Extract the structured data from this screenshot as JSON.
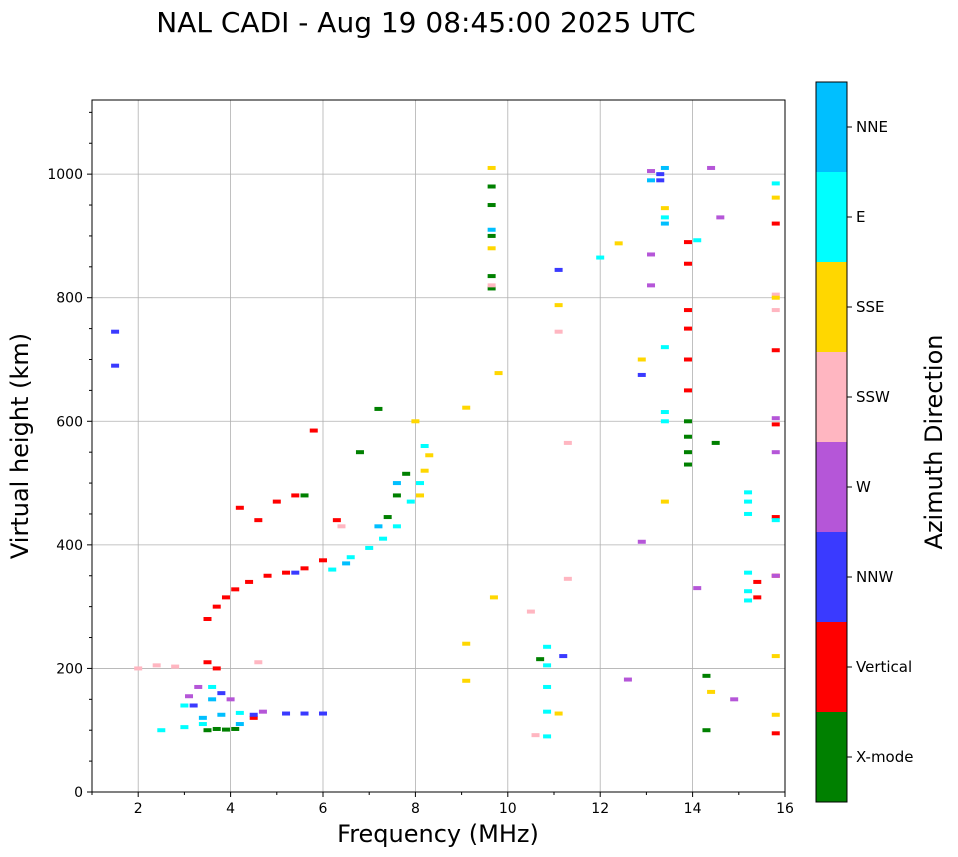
{
  "chart_data": {
    "type": "scatter",
    "title": "NAL CADI - Aug 19 08:45:00 2025 UTC",
    "xlabel": "Frequency (MHz)",
    "ylabel": "Virtual height (km)",
    "xlim": [
      1,
      16
    ],
    "ylim": [
      0,
      1120
    ],
    "xticks": [
      2,
      4,
      6,
      8,
      10,
      12,
      14,
      16
    ],
    "yticks": [
      0,
      200,
      400,
      600,
      800,
      1000
    ],
    "grid": true,
    "colorbar": {
      "label": "Azimuth Direction",
      "categories": [
        {
          "name": "X-mode",
          "color": "#008000"
        },
        {
          "name": "Vertical",
          "color": "#ff0000"
        },
        {
          "name": "NNW",
          "color": "#3a3aff"
        },
        {
          "name": "W",
          "color": "#b556d8"
        },
        {
          "name": "SSW",
          "color": "#ffb6c1"
        },
        {
          "name": "SSE",
          "color": "#ffd700"
        },
        {
          "name": "E",
          "color": "#00ffff"
        },
        {
          "name": "NNE",
          "color": "#00bfff"
        }
      ]
    },
    "series": [
      {
        "name": "X-mode",
        "points": [
          [
            3.5,
            100
          ],
          [
            3.7,
            102
          ],
          [
            3.9,
            101
          ],
          [
            4.1,
            102
          ],
          [
            7.4,
            445
          ],
          [
            7.6,
            480
          ],
          [
            7.8,
            515
          ],
          [
            7.2,
            620
          ],
          [
            9.65,
            815
          ],
          [
            9.65,
            835
          ],
          [
            9.65,
            900
          ],
          [
            9.65,
            950
          ],
          [
            9.65,
            980
          ],
          [
            10.7,
            215
          ],
          [
            13.9,
            530
          ],
          [
            13.9,
            550
          ],
          [
            13.9,
            575
          ],
          [
            13.9,
            600
          ],
          [
            14.5,
            565
          ],
          [
            14.3,
            100
          ],
          [
            14.3,
            188
          ],
          [
            6.8,
            550
          ],
          [
            5.6,
            480
          ]
        ]
      },
      {
        "name": "Vertical",
        "points": [
          [
            3.5,
            280
          ],
          [
            3.7,
            300
          ],
          [
            3.9,
            315
          ],
          [
            4.1,
            328
          ],
          [
            4.4,
            340
          ],
          [
            4.8,
            350
          ],
          [
            5.2,
            355
          ],
          [
            5.6,
            362
          ],
          [
            6.0,
            375
          ],
          [
            3.7,
            200
          ],
          [
            3.5,
            210
          ],
          [
            4.2,
            460
          ],
          [
            4.6,
            440
          ],
          [
            5.0,
            470
          ],
          [
            5.4,
            480
          ],
          [
            6.3,
            440
          ],
          [
            5.8,
            585
          ],
          [
            4.5,
            120
          ],
          [
            13.9,
            650
          ],
          [
            13.9,
            700
          ],
          [
            13.9,
            750
          ],
          [
            13.9,
            780
          ],
          [
            13.9,
            890
          ],
          [
            13.9,
            855
          ],
          [
            15.8,
            95
          ],
          [
            15.8,
            350
          ],
          [
            15.8,
            445
          ],
          [
            15.8,
            595
          ],
          [
            15.8,
            715
          ],
          [
            15.8,
            920
          ],
          [
            15.4,
            340
          ],
          [
            15.4,
            315
          ]
        ]
      },
      {
        "name": "NNW",
        "points": [
          [
            5.2,
            127
          ],
          [
            5.6,
            127
          ],
          [
            6.0,
            127
          ],
          [
            4.5,
            125
          ],
          [
            3.2,
            140
          ],
          [
            3.8,
            160
          ],
          [
            1.5,
            745
          ],
          [
            1.5,
            690
          ],
          [
            13.3,
            1000
          ],
          [
            13.3,
            990
          ],
          [
            12.9,
            675
          ],
          [
            11.2,
            220
          ],
          [
            11.1,
            845
          ],
          [
            5.4,
            355
          ]
        ]
      },
      {
        "name": "W",
        "points": [
          [
            4.7,
            130
          ],
          [
            3.3,
            170
          ],
          [
            3.1,
            155
          ],
          [
            4.0,
            150
          ],
          [
            13.1,
            820
          ],
          [
            13.1,
            870
          ],
          [
            13.1,
            1005
          ],
          [
            12.9,
            405
          ],
          [
            12.6,
            182
          ],
          [
            14.1,
            330
          ],
          [
            14.6,
            930
          ],
          [
            14.4,
            1010
          ],
          [
            14.9,
            150
          ],
          [
            15.8,
            550
          ],
          [
            15.8,
            605
          ],
          [
            15.8,
            350
          ]
        ]
      },
      {
        "name": "SSW",
        "points": [
          [
            2.0,
            200
          ],
          [
            2.4,
            205
          ],
          [
            2.8,
            203
          ],
          [
            4.6,
            210
          ],
          [
            6.4,
            430
          ],
          [
            9.65,
            820
          ],
          [
            10.6,
            92
          ],
          [
            10.5,
            292
          ],
          [
            11.1,
            745
          ],
          [
            11.3,
            345
          ],
          [
            11.3,
            565
          ],
          [
            15.8,
            780
          ],
          [
            15.8,
            805
          ]
        ]
      },
      {
        "name": "SSE",
        "points": [
          [
            8.2,
            520
          ],
          [
            8.3,
            545
          ],
          [
            8.1,
            480
          ],
          [
            8.0,
            600
          ],
          [
            9.1,
            180
          ],
          [
            9.1,
            240
          ],
          [
            9.1,
            622
          ],
          [
            9.65,
            880
          ],
          [
            9.65,
            1010
          ],
          [
            9.7,
            315
          ],
          [
            9.8,
            678
          ],
          [
            11.1,
            127
          ],
          [
            11.1,
            788
          ],
          [
            12.4,
            888
          ],
          [
            12.9,
            700
          ],
          [
            13.4,
            470
          ],
          [
            13.4,
            945
          ],
          [
            14.4,
            162
          ],
          [
            15.8,
            125
          ],
          [
            15.8,
            220
          ],
          [
            15.8,
            800
          ],
          [
            15.8,
            962
          ]
        ]
      },
      {
        "name": "E",
        "points": [
          [
            2.5,
            100
          ],
          [
            3.0,
            105
          ],
          [
            3.4,
            110
          ],
          [
            3.0,
            140
          ],
          [
            3.6,
            170
          ],
          [
            4.2,
            128
          ],
          [
            6.2,
            360
          ],
          [
            6.6,
            380
          ],
          [
            7.0,
            395
          ],
          [
            7.3,
            410
          ],
          [
            7.6,
            430
          ],
          [
            7.9,
            470
          ],
          [
            8.1,
            500
          ],
          [
            8.2,
            560
          ],
          [
            10.85,
            90
          ],
          [
            10.85,
            130
          ],
          [
            10.85,
            170
          ],
          [
            10.85,
            205
          ],
          [
            10.85,
            235
          ],
          [
            12.0,
            865
          ],
          [
            13.4,
            600
          ],
          [
            13.4,
            615
          ],
          [
            13.4,
            720
          ],
          [
            13.4,
            930
          ],
          [
            14.1,
            893
          ],
          [
            15.2,
            450
          ],
          [
            15.2,
            470
          ],
          [
            15.2,
            485
          ],
          [
            15.2,
            310
          ],
          [
            15.2,
            325
          ],
          [
            15.2,
            355
          ],
          [
            15.8,
            440
          ],
          [
            15.8,
            985
          ]
        ]
      },
      {
        "name": "NNE",
        "points": [
          [
            3.4,
            120
          ],
          [
            3.8,
            125
          ],
          [
            4.2,
            110
          ],
          [
            3.6,
            150
          ],
          [
            6.5,
            370
          ],
          [
            7.2,
            430
          ],
          [
            7.6,
            500
          ],
          [
            9.65,
            910
          ],
          [
            13.1,
            990
          ],
          [
            13.4,
            1010
          ],
          [
            13.4,
            920
          ]
        ]
      }
    ]
  }
}
